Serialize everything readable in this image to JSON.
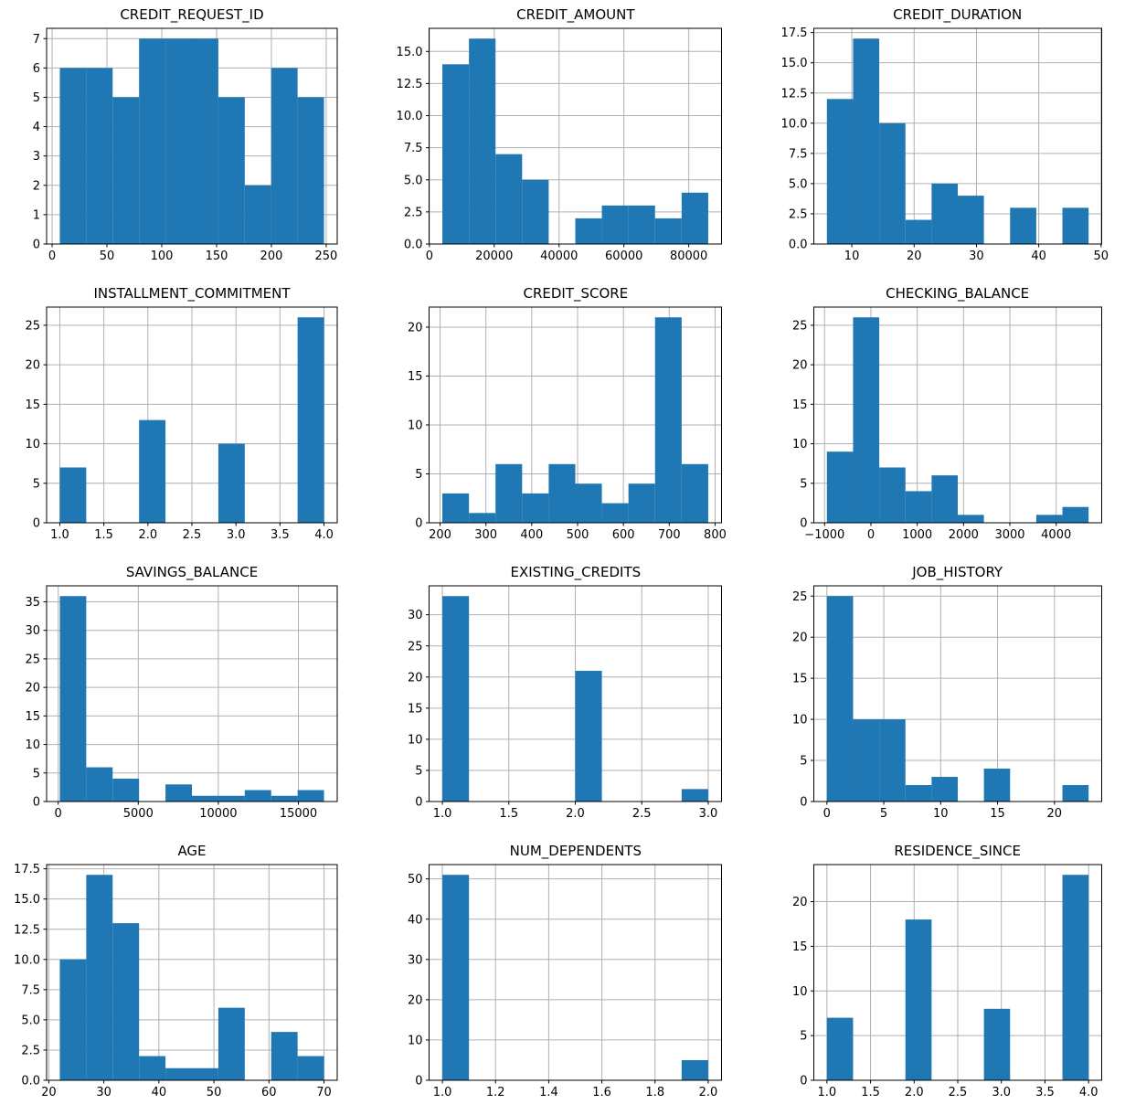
{
  "figure": {
    "background": "#ffffff",
    "bar_color": "#1f77b4",
    "grid_color": "#b0b0b0",
    "axis_color": "#000000",
    "grid": true
  },
  "chart_data": [
    {
      "type": "bar",
      "title": "CREDIT_REQUEST_ID",
      "bin_edges": [
        7,
        31.1,
        55.2,
        79.3,
        103.4,
        127.5,
        151.6,
        175.7,
        199.8,
        223.9,
        248
      ],
      "counts": [
        6,
        6,
        5,
        7,
        7,
        7,
        5,
        2,
        6,
        5
      ],
      "xlim": [
        -5.05,
        260.05
      ],
      "ylim": [
        0,
        7.35
      ],
      "xtick_values": [
        0,
        50,
        100,
        150,
        200,
        250
      ],
      "xtick_labels": [
        "0",
        "50",
        "100",
        "150",
        "200",
        "250"
      ],
      "ytick_values": [
        0,
        1,
        2,
        3,
        4,
        5,
        6,
        7
      ],
      "ytick_labels": [
        "0",
        "1",
        "2",
        "3",
        "4",
        "5",
        "6",
        "7"
      ]
    },
    {
      "type": "bar",
      "title": "CREDIT_AMOUNT",
      "bin_edges": [
        4000,
        12200,
        20400,
        28600,
        36800,
        45000,
        53200,
        61400,
        69600,
        77800,
        86000
      ],
      "counts": [
        14,
        16,
        7,
        5,
        0,
        2,
        3,
        3,
        2,
        4
      ],
      "xlim": [
        -100,
        90100
      ],
      "ylim": [
        0,
        16.8
      ],
      "xtick_values": [
        0,
        20000,
        40000,
        60000,
        80000
      ],
      "xtick_labels": [
        "0",
        "20000",
        "40000",
        "60000",
        "80000"
      ],
      "ytick_values": [
        0,
        2.5,
        5,
        7.5,
        10,
        12.5,
        15
      ],
      "ytick_labels": [
        "0.0",
        "2.5",
        "5.0",
        "7.5",
        "10.0",
        "12.5",
        "15.0"
      ]
    },
    {
      "type": "bar",
      "title": "CREDIT_DURATION",
      "bin_edges": [
        6,
        10.2,
        14.4,
        18.6,
        22.8,
        27,
        31.2,
        35.4,
        39.6,
        43.8,
        48
      ],
      "counts": [
        12,
        17,
        10,
        2,
        5,
        4,
        0,
        3,
        0,
        3
      ],
      "xlim": [
        3.9,
        50.1
      ],
      "ylim": [
        0,
        17.85
      ],
      "xtick_values": [
        10,
        20,
        30,
        40,
        50
      ],
      "xtick_labels": [
        "10",
        "20",
        "30",
        "40",
        "50"
      ],
      "ytick_values": [
        0,
        2.5,
        5,
        7.5,
        10,
        12.5,
        15,
        17.5
      ],
      "ytick_labels": [
        "0.0",
        "2.5",
        "5.0",
        "7.5",
        "10.0",
        "12.5",
        "15.0",
        "17.5"
      ]
    },
    {
      "type": "bar",
      "title": "INSTALLMENT_COMMITMENT",
      "bin_edges": [
        1,
        1.3,
        1.6,
        1.9,
        2.2,
        2.5,
        2.8,
        3.1,
        3.4,
        3.7,
        4
      ],
      "counts": [
        7,
        0,
        0,
        13,
        0,
        0,
        10,
        0,
        0,
        26
      ],
      "xlim": [
        0.85,
        4.15
      ],
      "ylim": [
        0,
        27.3
      ],
      "xtick_values": [
        1,
        1.5,
        2,
        2.5,
        3,
        3.5,
        4
      ],
      "xtick_labels": [
        "1.0",
        "1.5",
        "2.0",
        "2.5",
        "3.0",
        "3.5",
        "4.0"
      ],
      "ytick_values": [
        0,
        5,
        10,
        15,
        20,
        25
      ],
      "ytick_labels": [
        "0",
        "5",
        "10",
        "15",
        "20",
        "25"
      ]
    },
    {
      "type": "bar",
      "title": "CREDIT_SCORE",
      "bin_edges": [
        205,
        263,
        321,
        379,
        437,
        495,
        553,
        611,
        669,
        727,
        785
      ],
      "counts": [
        3,
        1,
        6,
        3,
        6,
        4,
        2,
        4,
        21,
        6
      ],
      "xlim": [
        176,
        814
      ],
      "ylim": [
        0,
        22.05
      ],
      "xtick_values": [
        200,
        300,
        400,
        500,
        600,
        700,
        800
      ],
      "xtick_labels": [
        "200",
        "300",
        "400",
        "500",
        "600",
        "700",
        "800"
      ],
      "ytick_values": [
        0,
        5,
        10,
        15,
        20
      ],
      "ytick_labels": [
        "0",
        "5",
        "10",
        "15",
        "20"
      ]
    },
    {
      "type": "bar",
      "title": "CHECKING_BALANCE",
      "bin_edges": [
        -950,
        -385,
        180,
        745,
        1310,
        1875,
        2440,
        3005,
        3570,
        4135,
        4700
      ],
      "counts": [
        9,
        26,
        7,
        4,
        6,
        1,
        0,
        0,
        1,
        2
      ],
      "xlim": [
        -1232.5,
        4982.5
      ],
      "ylim": [
        0,
        27.3
      ],
      "xtick_values": [
        -1000,
        0,
        1000,
        2000,
        3000,
        4000
      ],
      "xtick_labels": [
        "−1000",
        "0",
        "1000",
        "2000",
        "3000",
        "4000"
      ],
      "ytick_values": [
        0,
        5,
        10,
        15,
        20,
        25
      ],
      "ytick_labels": [
        "0",
        "5",
        "10",
        "15",
        "20",
        "25"
      ]
    },
    {
      "type": "bar",
      "title": "SAVINGS_BALANCE",
      "bin_edges": [
        100,
        1750,
        3400,
        5050,
        6700,
        8350,
        10000,
        11650,
        13300,
        14950,
        16600
      ],
      "counts": [
        36,
        6,
        4,
        0,
        3,
        1,
        1,
        2,
        1,
        2
      ],
      "xlim": [
        -725,
        17425
      ],
      "ylim": [
        0,
        37.8
      ],
      "xtick_values": [
        0,
        5000,
        10000,
        15000
      ],
      "xtick_labels": [
        "0",
        "5000",
        "10000",
        "15000"
      ],
      "ytick_values": [
        0,
        5,
        10,
        15,
        20,
        25,
        30,
        35
      ],
      "ytick_labels": [
        "0",
        "5",
        "10",
        "15",
        "20",
        "25",
        "30",
        "35"
      ]
    },
    {
      "type": "bar",
      "title": "EXISTING_CREDITS",
      "bin_edges": [
        1,
        1.2,
        1.4,
        1.6,
        1.8,
        2,
        2.2,
        2.4,
        2.6,
        2.8,
        3
      ],
      "counts": [
        33,
        0,
        0,
        0,
        0,
        21,
        0,
        0,
        0,
        2
      ],
      "xlim": [
        0.9,
        3.1
      ],
      "ylim": [
        0,
        34.65
      ],
      "xtick_values": [
        1,
        1.5,
        2,
        2.5,
        3
      ],
      "xtick_labels": [
        "1.0",
        "1.5",
        "2.0",
        "2.5",
        "3.0"
      ],
      "ytick_values": [
        0,
        5,
        10,
        15,
        20,
        25,
        30
      ],
      "ytick_labels": [
        "0",
        "5",
        "10",
        "15",
        "20",
        "25",
        "30"
      ]
    },
    {
      "type": "bar",
      "title": "JOB_HISTORY",
      "bin_edges": [
        0,
        2.3,
        4.6,
        6.9,
        9.2,
        11.5,
        13.8,
        16.1,
        18.4,
        20.7,
        23
      ],
      "counts": [
        25,
        10,
        10,
        2,
        3,
        0,
        4,
        0,
        0,
        2
      ],
      "xlim": [
        -1.15,
        24.15
      ],
      "ylim": [
        0,
        26.25
      ],
      "xtick_values": [
        0,
        5,
        10,
        15,
        20
      ],
      "xtick_labels": [
        "0",
        "5",
        "10",
        "15",
        "20"
      ],
      "ytick_values": [
        0,
        5,
        10,
        15,
        20,
        25
      ],
      "ytick_labels": [
        "0",
        "5",
        "10",
        "15",
        "20",
        "25"
      ]
    },
    {
      "type": "bar",
      "title": "AGE",
      "bin_edges": [
        22,
        26.8,
        31.6,
        36.4,
        41.2,
        46,
        50.8,
        55.6,
        60.4,
        65.2,
        70
      ],
      "counts": [
        10,
        17,
        13,
        2,
        1,
        1,
        6,
        0,
        4,
        2
      ],
      "xlim": [
        19.6,
        72.4
      ],
      "ylim": [
        0,
        17.85
      ],
      "xtick_values": [
        20,
        30,
        40,
        50,
        60,
        70
      ],
      "xtick_labels": [
        "20",
        "30",
        "40",
        "50",
        "60",
        "70"
      ],
      "ytick_values": [
        0,
        2.5,
        5,
        7.5,
        10,
        12.5,
        15,
        17.5
      ],
      "ytick_labels": [
        "0.0",
        "2.5",
        "5.0",
        "7.5",
        "10.0",
        "12.5",
        "15.0",
        "17.5"
      ]
    },
    {
      "type": "bar",
      "title": "NUM_DEPENDENTS",
      "bin_edges": [
        1,
        1.1,
        1.2,
        1.3,
        1.4,
        1.5,
        1.6,
        1.7,
        1.8,
        1.9,
        2
      ],
      "counts": [
        51,
        0,
        0,
        0,
        0,
        0,
        0,
        0,
        0,
        5
      ],
      "xlim": [
        0.95,
        2.05
      ],
      "ylim": [
        0,
        53.55
      ],
      "xtick_values": [
        1,
        1.2,
        1.4,
        1.6,
        1.8,
        2
      ],
      "xtick_labels": [
        "1.0",
        "1.2",
        "1.4",
        "1.6",
        "1.8",
        "2.0"
      ],
      "ytick_values": [
        0,
        10,
        20,
        30,
        40,
        50
      ],
      "ytick_labels": [
        "0",
        "10",
        "20",
        "30",
        "40",
        "50"
      ]
    },
    {
      "type": "bar",
      "title": "RESIDENCE_SINCE",
      "bin_edges": [
        1,
        1.3,
        1.6,
        1.9,
        2.2,
        2.5,
        2.8,
        3.1,
        3.4,
        3.7,
        4
      ],
      "counts": [
        7,
        0,
        0,
        18,
        0,
        0,
        8,
        0,
        0,
        23
      ],
      "xlim": [
        0.85,
        4.15
      ],
      "ylim": [
        0,
        24.15
      ],
      "xtick_values": [
        1,
        1.5,
        2,
        2.5,
        3,
        3.5,
        4
      ],
      "xtick_labels": [
        "1.0",
        "1.5",
        "2.0",
        "2.5",
        "3.0",
        "3.5",
        "4.0"
      ],
      "ytick_values": [
        0,
        5,
        10,
        15,
        20
      ],
      "ytick_labels": [
        "0",
        "5",
        "10",
        "15",
        "20"
      ]
    }
  ]
}
